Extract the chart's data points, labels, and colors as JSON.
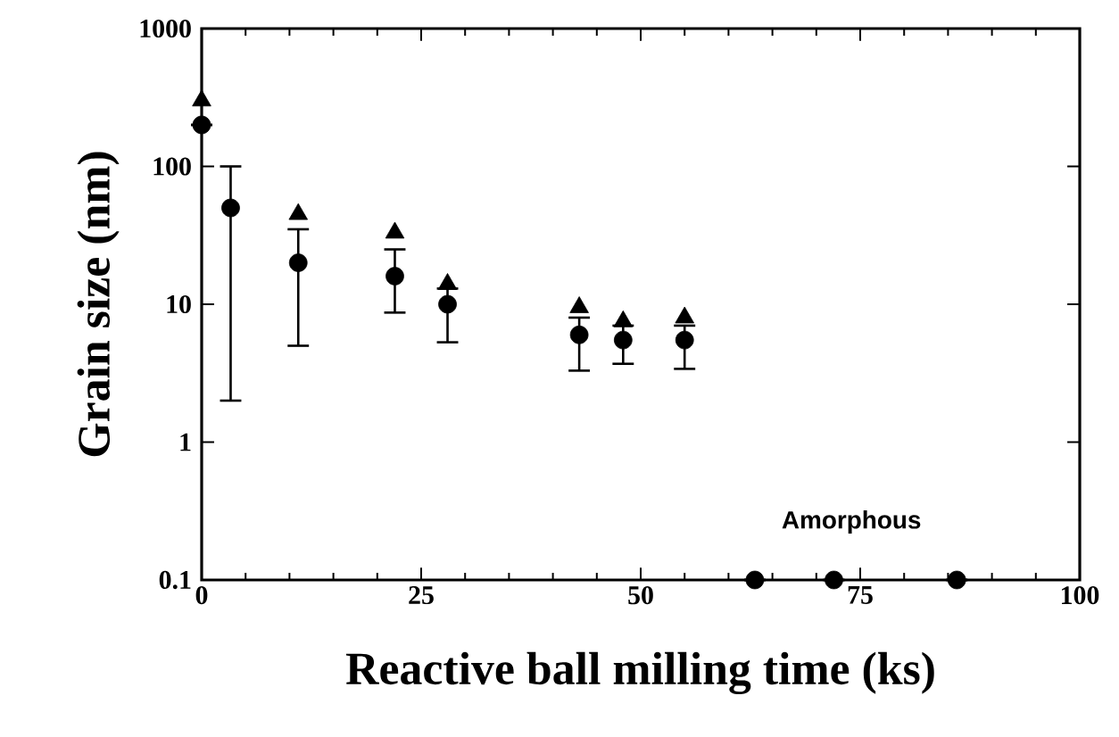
{
  "chart_data": {
    "type": "scatter",
    "xlabel": "Reactive ball milling time (ks)",
    "ylabel": "Grain size (nm)",
    "annotations": [
      "Amorphous"
    ],
    "series": [
      {
        "color": "#000000",
        "marker": "triangle",
        "x": [
          0,
          11,
          22,
          28,
          43,
          48,
          55
        ],
        "values": [
          300,
          45,
          33,
          14,
          9.5,
          7.5,
          8
        ]
      },
      {
        "color": "#000000",
        "marker": "circle",
        "x": [
          0,
          3.3,
          11,
          22,
          28,
          43,
          48,
          55,
          63,
          72,
          86
        ],
        "values": [
          200,
          50,
          20,
          16,
          10,
          6,
          5.5,
          5.5,
          0.1,
          0.1,
          0.1
        ],
        "errors": [
          null,
          [
            2,
            100
          ],
          [
            5,
            35
          ],
          [
            8.7,
            25
          ],
          [
            5.3,
            13
          ],
          [
            3.3,
            8
          ],
          [
            3.7,
            7
          ],
          [
            3.4,
            7
          ],
          null,
          null,
          null
        ]
      }
    ],
    "log": "y",
    "xlim": [
      0,
      100
    ],
    "ylim": [
      0.1,
      1000
    ],
    "xticks": [
      0,
      25,
      50,
      75,
      100
    ],
    "yticks": [
      0.1,
      1,
      10,
      100,
      1000
    ]
  }
}
